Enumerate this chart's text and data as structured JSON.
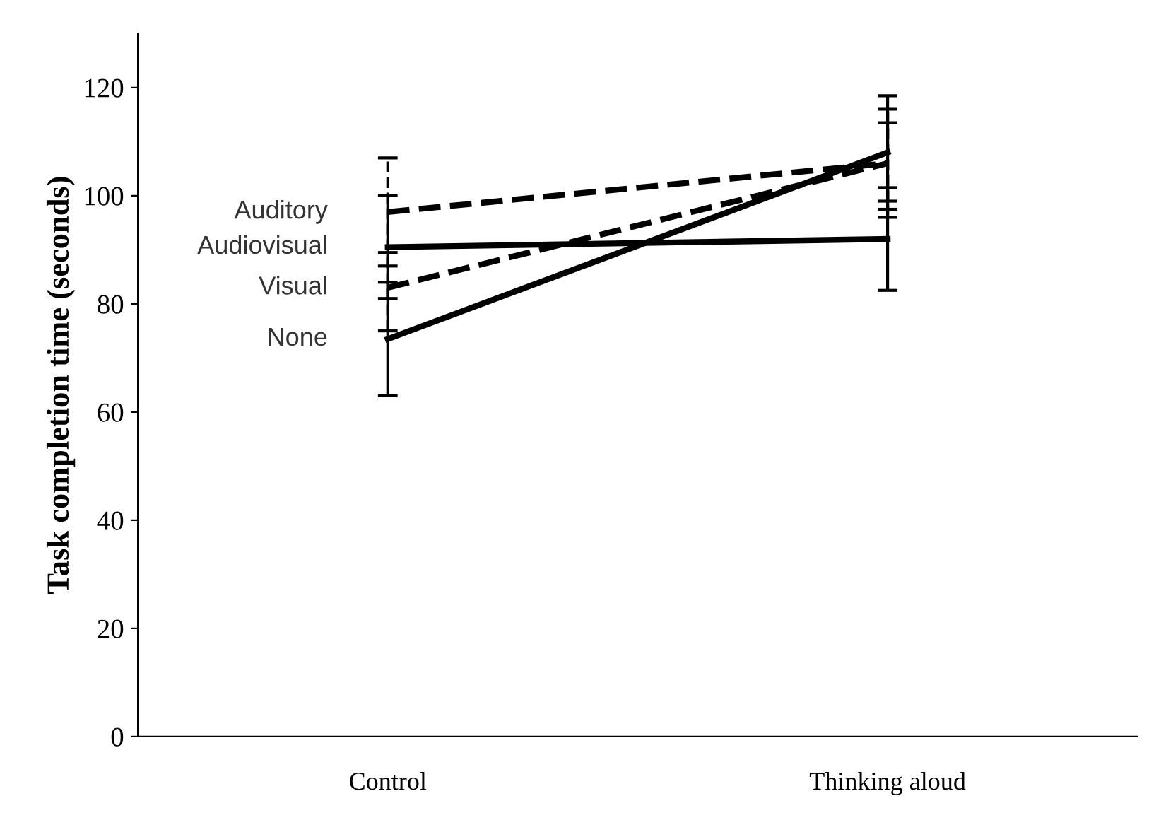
{
  "chart_data": {
    "type": "line",
    "ylabel": "Task completion time (seconds)",
    "categories": [
      "Control",
      "Thinking aloud"
    ],
    "ylim": [
      0,
      130
    ],
    "yticks": [
      0,
      20,
      40,
      60,
      80,
      100,
      120
    ],
    "grid": false,
    "legend": false,
    "marker": "none",
    "series": [
      {
        "name": "Auditory",
        "color": "#000000",
        "line_style": "dashed",
        "values": [
          97,
          106
        ],
        "errors": [
          [
            87,
            107
          ],
          [
            96,
            116
          ]
        ]
      },
      {
        "name": "Audiovisual",
        "color": "#000000",
        "line_style": "solid",
        "values": [
          90.5,
          92
        ],
        "errors": [
          [
            81,
            100
          ],
          [
            82.5,
            101.5
          ]
        ]
      },
      {
        "name": "Visual",
        "color": "#000000",
        "line_style": "dashed",
        "values": [
          83,
          106
        ],
        "errors": [
          [
            75,
            89.5
          ],
          [
            99,
            113.5
          ]
        ]
      },
      {
        "name": "None",
        "color": "#000000",
        "line_style": "solid",
        "values": [
          73.5,
          108
        ],
        "errors": [
          [
            63,
            84
          ],
          [
            97.5,
            118.5
          ]
        ]
      }
    ]
  }
}
